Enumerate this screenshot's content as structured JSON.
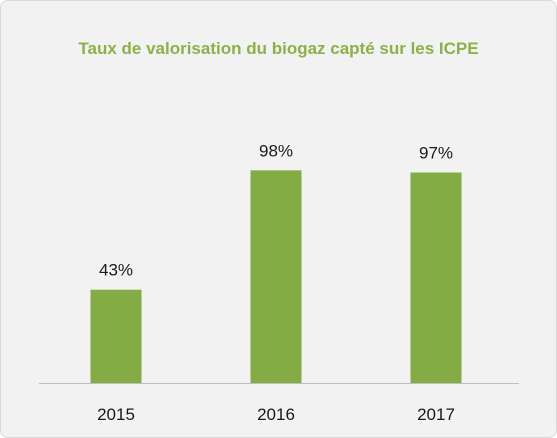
{
  "chart_data": {
    "type": "bar",
    "title": "Taux de valorisation du biogaz capté sur les ICPE",
    "categories": [
      "2015",
      "2016",
      "2017"
    ],
    "values": [
      43,
      98,
      97
    ],
    "value_labels": [
      "43%",
      "98%",
      "97%"
    ],
    "color": "#84ac44",
    "ylim": [
      0,
      100
    ]
  }
}
